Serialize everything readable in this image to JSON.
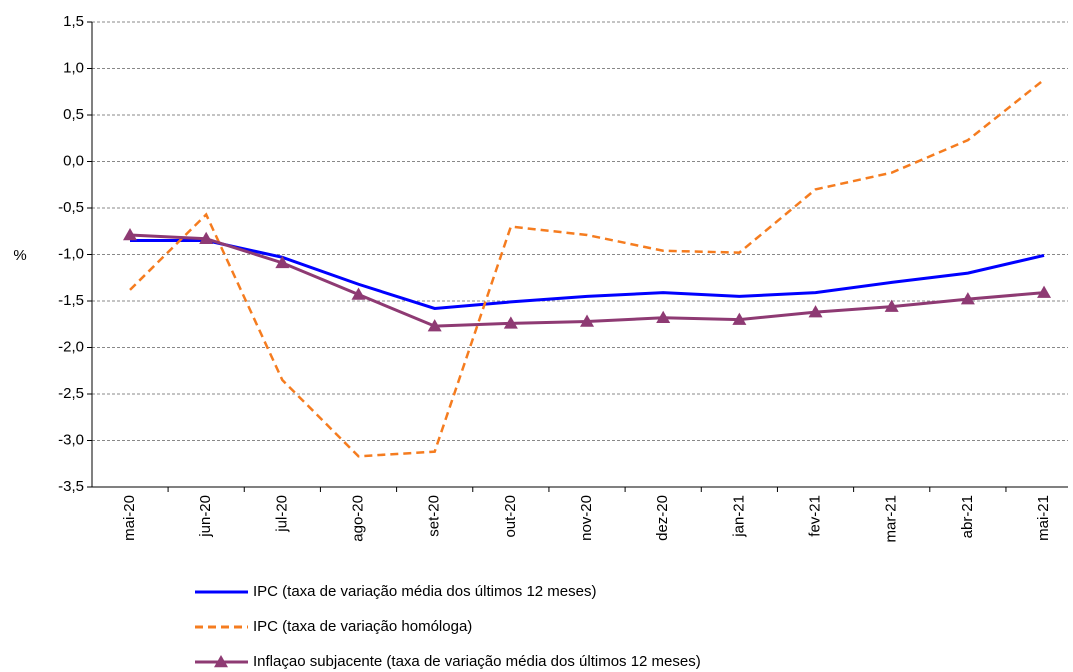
{
  "chart_data": {
    "type": "line",
    "y_label": "%",
    "categories": [
      "mai-20",
      "jun-20",
      "jul-20",
      "ago-20",
      "set-20",
      "out-20",
      "nov-20",
      "dez-20",
      "jan-21",
      "fev-21",
      "mar-21",
      "abr-21",
      "mai-21"
    ],
    "series": [
      {
        "name": "IPC (taxa de variação média dos últimos 12 meses)",
        "color": "#0000ff",
        "style": "solid",
        "marker": "none",
        "values": [
          -0.85,
          -0.85,
          -1.03,
          -1.32,
          -1.58,
          -1.51,
          -1.45,
          -1.41,
          -1.45,
          -1.41,
          -1.3,
          -1.2,
          -1.01
        ]
      },
      {
        "name": "IPC (taxa de variação homóloga)",
        "color": "#f57c1f",
        "style": "dashed",
        "marker": "none",
        "values": [
          -1.38,
          -0.57,
          -2.35,
          -3.17,
          -3.12,
          -0.7,
          -0.79,
          -0.96,
          -0.98,
          -0.3,
          -0.12,
          0.23,
          0.88
        ]
      },
      {
        "name": "Inflaçao subjacente (taxa de variação média dos últimos 12 meses)",
        "color": "#8e3a73",
        "style": "solid",
        "marker": "triangle",
        "values": [
          -0.79,
          -0.83,
          -1.09,
          -1.43,
          -1.77,
          -1.74,
          -1.72,
          -1.68,
          -1.7,
          -1.62,
          -1.56,
          -1.48,
          -1.41
        ]
      }
    ],
    "ylim": [
      -3.5,
      1.5
    ],
    "yticks": [
      {
        "value": 1.5,
        "label": "1,5"
      },
      {
        "value": 1,
        "label": "1,0"
      },
      {
        "value": 0.5,
        "label": "0,5"
      },
      {
        "value": 0,
        "label": "0,0"
      },
      {
        "value": -0.5,
        "label": "-0,5"
      },
      {
        "value": -1,
        "label": "-1,0"
      },
      {
        "value": -1.5,
        "label": "-1,5"
      },
      {
        "value": -2,
        "label": "-2,0"
      },
      {
        "value": -2.5,
        "label": "-2,5"
      },
      {
        "value": -3,
        "label": "-3,0"
      },
      {
        "value": -3.5,
        "label": "-3,5"
      }
    ],
    "grid": true,
    "legend": "bottom"
  }
}
